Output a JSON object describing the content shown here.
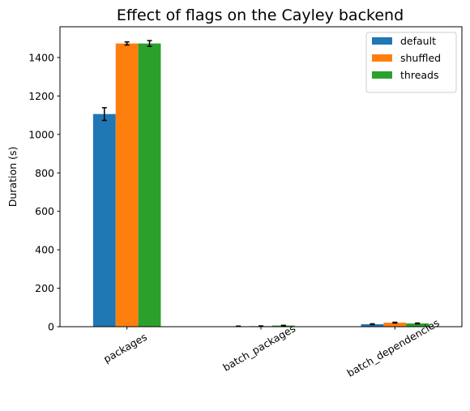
{
  "chart_data": {
    "type": "bar",
    "title": "Effect of flags on the Cayley backend",
    "xlabel": "",
    "ylabel": "Duration (s)",
    "categories": [
      "packages",
      "batch_packages",
      "batch_dependencies"
    ],
    "series": [
      {
        "name": "default",
        "color": "#1f77b4",
        "values": [
          1106,
          2,
          13
        ],
        "errors": [
          33,
          1,
          2
        ]
      },
      {
        "name": "shuffled",
        "color": "#ff7f0e",
        "values": [
          1473,
          3,
          21
        ],
        "errors": [
          8,
          1,
          2
        ]
      },
      {
        "name": "threads",
        "color": "#2ca02c",
        "values": [
          1473,
          6,
          17
        ],
        "errors": [
          15,
          1,
          2
        ]
      }
    ],
    "ylim": [
      0,
      1560
    ],
    "yticks": [
      0,
      200,
      400,
      600,
      800,
      1000,
      1200,
      1400
    ],
    "legend_position": "top-right",
    "xtick_rotation": 30,
    "grid": false
  }
}
